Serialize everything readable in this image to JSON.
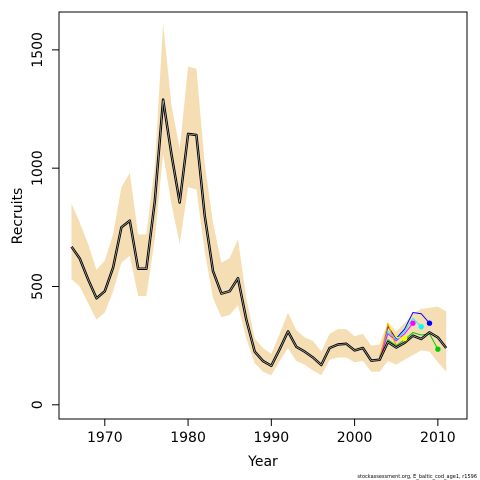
{
  "chart_data": {
    "type": "line",
    "title": "",
    "xlabel": "Year",
    "ylabel": "Recruits",
    "xlim": [
      1964.5,
      2013.5
    ],
    "ylim": [
      -60,
      1660
    ],
    "xticks": [
      1970,
      1980,
      1990,
      2000,
      2010
    ],
    "yticks": [
      0,
      500,
      1000,
      1500
    ],
    "footer": "stockassessment.org, E_baltic_cod_age1, r1596",
    "grid": false,
    "legend": "none",
    "colors": {
      "band": "#F5DEB3",
      "main_line": "#000000",
      "retro_lines": [
        "#0000FF",
        "#00FFFF",
        "#FF00FF",
        "#FFFF00",
        "#00CC00",
        "#FF8C00"
      ]
    },
    "confidence_band": {
      "x": [
        1966,
        1967,
        1968,
        1969,
        1970,
        1971,
        1972,
        1973,
        1974,
        1975,
        1976,
        1977,
        1978,
        1979,
        1980,
        1981,
        1982,
        1983,
        1984,
        1985,
        1986,
        1987,
        1988,
        1989,
        1990,
        1991,
        1992,
        1993,
        1994,
        1995,
        1996,
        1997,
        1998,
        1999,
        2000,
        2001,
        2002,
        2003,
        2004,
        2005,
        2006,
        2007,
        2008,
        2009,
        2010,
        2011
      ],
      "lower": [
        530,
        500,
        430,
        360,
        390,
        480,
        600,
        630,
        460,
        460,
        700,
        1060,
        850,
        680,
        920,
        910,
        650,
        450,
        370,
        380,
        420,
        280,
        175,
        140,
        125,
        185,
        240,
        185,
        170,
        145,
        125,
        190,
        200,
        200,
        180,
        185,
        140,
        140,
        185,
        170,
        190,
        210,
        230,
        225,
        180,
        140
      ],
      "upper": [
        850,
        770,
        680,
        570,
        610,
        720,
        920,
        980,
        720,
        720,
        1010,
        1610,
        1270,
        1080,
        1430,
        1420,
        1020,
        770,
        600,
        620,
        700,
        450,
        280,
        240,
        215,
        300,
        390,
        315,
        285,
        270,
        225,
        300,
        320,
        320,
        290,
        300,
        250,
        255,
        350,
        310,
        345,
        385,
        405,
        410,
        415,
        395
      ]
    },
    "series": [
      {
        "x": [
          1966,
          1967,
          1968,
          1969,
          1970,
          1971,
          1972,
          1973,
          1974,
          1975,
          1976,
          1977,
          1978,
          1979,
          1980,
          1981,
          1982,
          1983,
          1984,
          1985,
          1986,
          1987,
          1988,
          1989,
          1990,
          1991,
          1992,
          1993,
          1994,
          1995,
          1996,
          1997,
          1998,
          1999,
          2000,
          2001,
          2002,
          2003,
          2004,
          2005,
          2006,
          2007,
          2008,
          2009,
          2010,
          2011
        ],
        "values": [
          668,
          618,
          530,
          450,
          480,
          580,
          750,
          778,
          575,
          575,
          860,
          1290,
          1060,
          855,
          1145,
          1140,
          800,
          565,
          470,
          480,
          535,
          360,
          225,
          185,
          165,
          235,
          310,
          245,
          225,
          200,
          168,
          240,
          255,
          258,
          230,
          240,
          187,
          190,
          265,
          242,
          262,
          292,
          278,
          306,
          285,
          240
        ]
      },
      {
        "x": [
          2003,
          2004,
          2005,
          2006,
          2007,
          2008,
          2009
        ],
        "values": [
          200,
          330,
          280,
          320,
          390,
          385,
          345
        ]
      },
      {
        "x": [
          2003,
          2004,
          2005,
          2006,
          2007,
          2008
        ],
        "values": [
          195,
          310,
          275,
          310,
          365,
          330
        ]
      },
      {
        "x": [
          2003,
          2004,
          2005,
          2006,
          2007
        ],
        "values": [
          195,
          300,
          270,
          300,
          345
        ]
      },
      {
        "x": [
          2003,
          2004,
          2005,
          2006
        ],
        "values": [
          195,
          345,
          285,
          280
        ]
      },
      {
        "x": [
          2003,
          2004,
          2005,
          2006,
          2007,
          2008,
          2009,
          2010
        ],
        "values": [
          190,
          275,
          250,
          275,
          305,
          295,
          300,
          235
        ]
      },
      {
        "x": [
          2003,
          2004,
          2005
        ],
        "values": [
          195,
          340,
          250
        ]
      }
    ],
    "retro_endpoints": [
      {
        "x": 2009,
        "y": 345,
        "color": "#0000FF"
      },
      {
        "x": 2008,
        "y": 330,
        "color": "#00FFFF"
      },
      {
        "x": 2007,
        "y": 345,
        "color": "#FF00FF"
      },
      {
        "x": 2006,
        "y": 280,
        "color": "#FFFF00"
      },
      {
        "x": 2010,
        "y": 235,
        "color": "#00CC00"
      }
    ]
  }
}
